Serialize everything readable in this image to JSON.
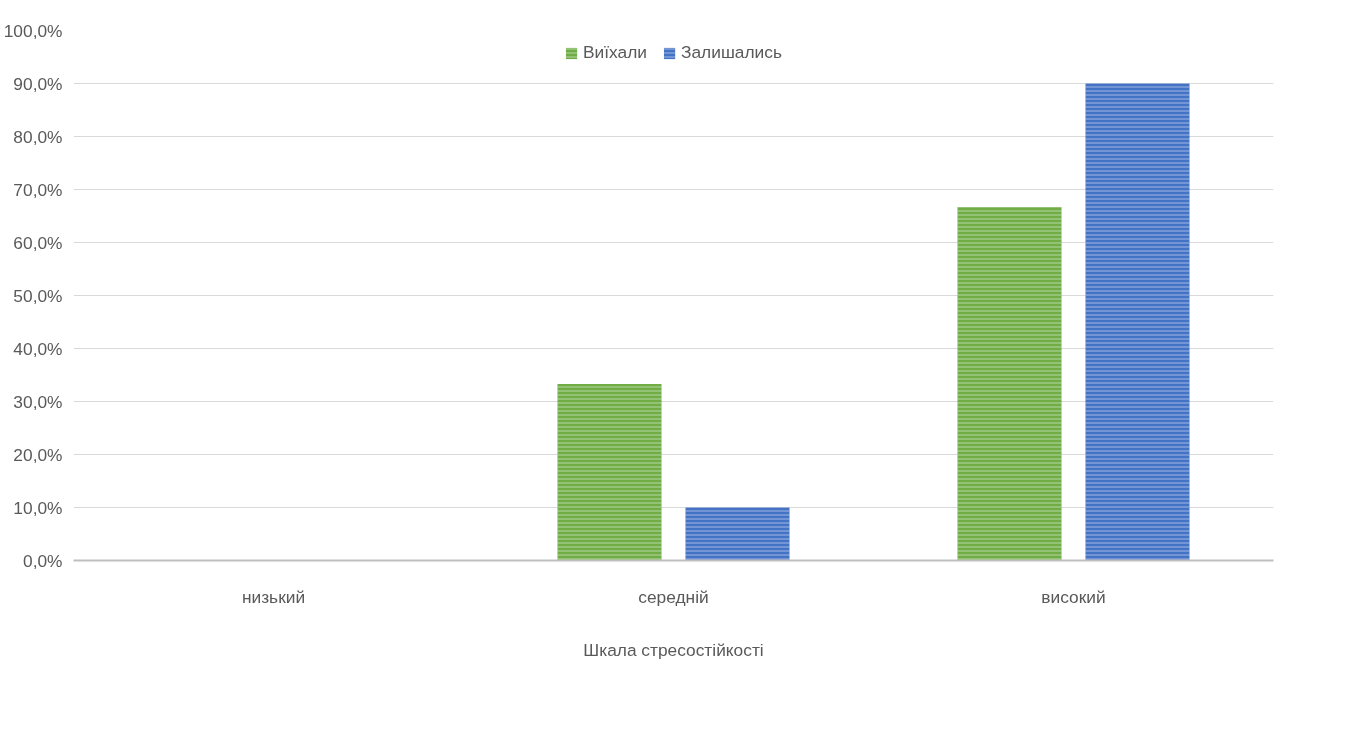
{
  "chart_data": {
    "type": "bar",
    "xlabel": "Шкала стресостійкості",
    "categories": [
      "низький",
      "середній",
      "високий"
    ],
    "series": [
      {
        "name": "Виїхали",
        "color": "#70ad47",
        "values": [
          0,
          33.3,
          66.7
        ]
      },
      {
        "name": "Залишались",
        "color": "#4472c4",
        "values": [
          0,
          10.0,
          90.0
        ]
      }
    ],
    "ylim": [
      0,
      100
    ],
    "yticks": [
      {
        "value": 0,
        "label": "0,0%"
      },
      {
        "value": 10,
        "label": "10,0%"
      },
      {
        "value": 20,
        "label": "20,0%"
      },
      {
        "value": 30,
        "label": "30,0%"
      },
      {
        "value": 40,
        "label": "40,0%"
      },
      {
        "value": 50,
        "label": "50,0%"
      },
      {
        "value": 60,
        "label": "60,0%"
      },
      {
        "value": 70,
        "label": "70,0%"
      },
      {
        "value": 80,
        "label": "80,0%"
      },
      {
        "value": 90,
        "label": "90,0%"
      },
      {
        "value": 100,
        "label": "100,0%"
      }
    ],
    "grid": "y",
    "legend": "top"
  }
}
